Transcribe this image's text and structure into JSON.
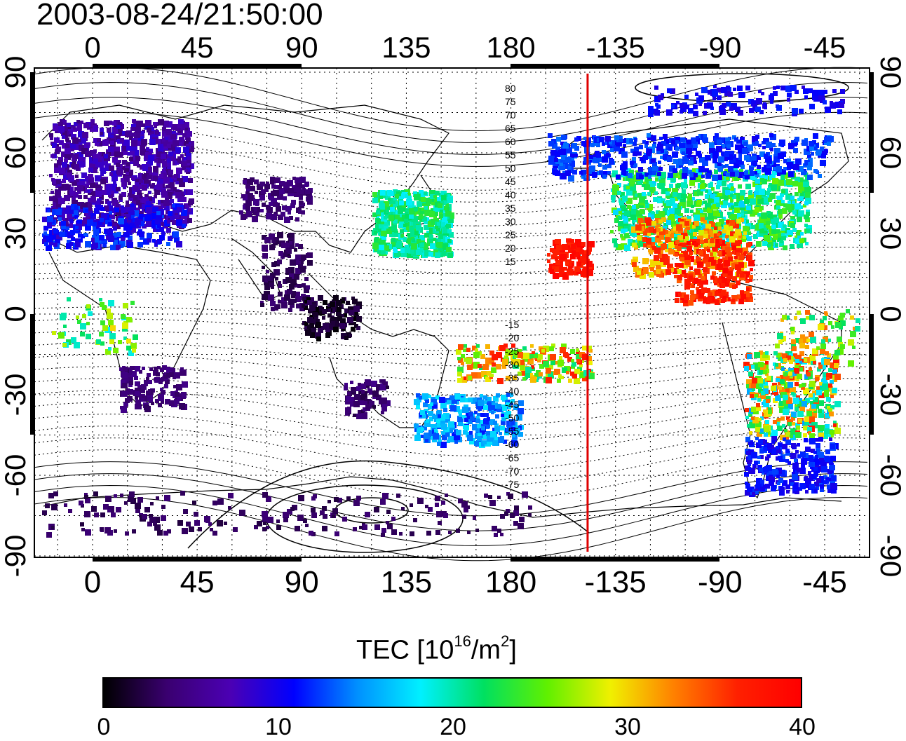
{
  "title": "2003-08-24/21:50:00",
  "map": {
    "top_lon_ticks": [
      "0",
      "45",
      "90",
      "135",
      "180",
      "-135",
      "-90",
      "-45"
    ],
    "bottom_lon_ticks": [
      "0",
      "45",
      "90",
      "135",
      "180",
      "-135",
      "-90",
      "-45"
    ],
    "left_lat_ticks": [
      "90",
      "60",
      "30",
      "0",
      "-30",
      "-60",
      "-90"
    ],
    "right_lat_ticks": [
      "90",
      "60",
      "30",
      "0",
      "-30",
      "-60",
      "-90"
    ],
    "contour_labels_north": [
      "80",
      "75",
      "70",
      "65",
      "60",
      "55",
      "50",
      "45",
      "40",
      "35",
      "30",
      "25",
      "20",
      "15"
    ],
    "contour_labels_south": [
      "-15",
      "-20",
      "-25",
      "-30",
      "-35",
      "-40",
      "-45",
      "-50",
      "-55",
      "-60",
      "-65",
      "-70",
      "-75"
    ],
    "terminator_longitude": -147,
    "terminator_color": "#e00000"
  },
  "colorbar": {
    "title_main": "TEC  [10",
    "title_exp1": "16",
    "title_mid": "/m",
    "title_exp2": "2",
    "title_end": "]",
    "ticks": [
      "0",
      "10",
      "20",
      "30",
      "40"
    ],
    "min": 0,
    "max": 40,
    "stops": [
      "#000000",
      "#3a0070",
      "#4b00b4",
      "#0000ff",
      "#0090ff",
      "#00f0ff",
      "#00e060",
      "#60f000",
      "#f0f000",
      "#ff8000",
      "#ff2000",
      "#ff0000"
    ]
  }
}
